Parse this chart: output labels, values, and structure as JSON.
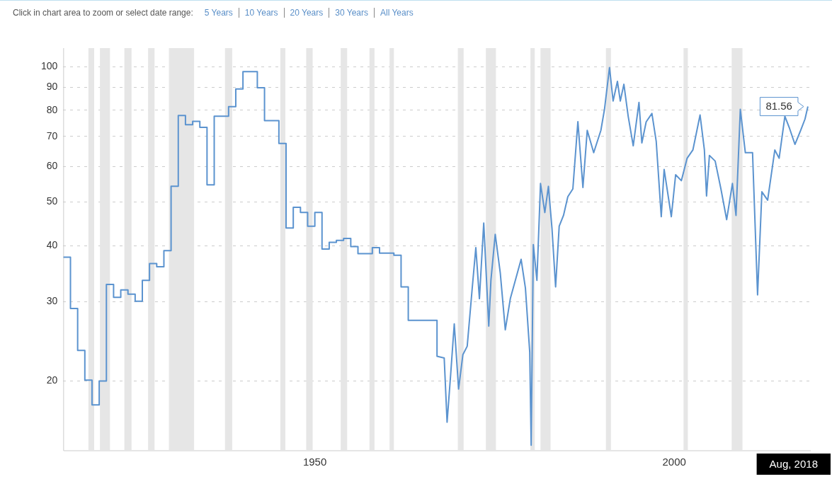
{
  "chart_data": {
    "type": "line",
    "annotations": [
      "Click in chart area to zoom or select date range:",
      "5 Years",
      "10 Years",
      "20 Years",
      "30 Years",
      "All Years",
      {
        "text": "81.56",
        "x": 2018.6,
        "y": 81.56
      },
      "Aug, 2018"
    ],
    "xlim": [
      1915,
      2019
    ],
    "xticks": [
      1950,
      2000
    ],
    "ylim": [
      14,
      110
    ],
    "yticks": [
      20,
      30,
      40,
      50,
      60,
      70,
      80,
      90,
      100
    ],
    "log": "y",
    "grid": "y",
    "legend": false,
    "marker": "none",
    "line_style": "solid",
    "bands": [
      {
        "axis": "x",
        "from": 1918.5,
        "to": 1919.3,
        "color": "#e6e6e6"
      },
      {
        "axis": "x",
        "from": 1920.1,
        "to": 1921.5,
        "color": "#e6e6e6"
      },
      {
        "axis": "x",
        "from": 1923.5,
        "to": 1924.5,
        "color": "#e6e6e6"
      },
      {
        "axis": "x",
        "from": 1926.8,
        "to": 1927.7,
        "color": "#e6e6e6"
      },
      {
        "axis": "x",
        "from": 1929.7,
        "to": 1933.2,
        "color": "#e6e6e6"
      },
      {
        "axis": "x",
        "from": 1937.5,
        "to": 1938.5,
        "color": "#e6e6e6"
      },
      {
        "axis": "x",
        "from": 1945.2,
        "to": 1945.9,
        "color": "#e6e6e6"
      },
      {
        "axis": "x",
        "from": 1948.8,
        "to": 1949.7,
        "color": "#e6e6e6"
      },
      {
        "axis": "x",
        "from": 1953.6,
        "to": 1954.5,
        "color": "#e6e6e6"
      },
      {
        "axis": "x",
        "from": 1957.6,
        "to": 1958.3,
        "color": "#e6e6e6"
      },
      {
        "axis": "x",
        "from": 1960.4,
        "to": 1961.0,
        "color": "#e6e6e6"
      },
      {
        "axis": "x",
        "from": 1969.9,
        "to": 1970.7,
        "color": "#e6e6e6"
      },
      {
        "axis": "x",
        "from": 1973.8,
        "to": 1975.2,
        "color": "#e6e6e6"
      },
      {
        "axis": "x",
        "from": 1980.0,
        "to": 1980.6,
        "color": "#e6e6e6"
      },
      {
        "axis": "x",
        "from": 1981.4,
        "to": 1982.8,
        "color": "#e6e6e6"
      },
      {
        "axis": "x",
        "from": 1990.5,
        "to": 1991.2,
        "color": "#e6e6e6"
      },
      {
        "axis": "x",
        "from": 2001.3,
        "to": 2001.9,
        "color": "#e6e6e6"
      },
      {
        "axis": "x",
        "from": 2008.0,
        "to": 2009.5,
        "color": "#e6e6e6"
      }
    ],
    "series": [
      {
        "color": "#5b93cf",
        "x": [
          1915,
          1916,
          1916,
          1917,
          1917,
          1918,
          1918,
          1919,
          1919,
          1920,
          1920,
          1921,
          1921,
          1922,
          1922,
          1923,
          1923,
          1924,
          1924,
          1925,
          1925,
          1926,
          1926,
          1927,
          1927,
          1928,
          1928,
          1929,
          1929,
          1930,
          1930,
          1931,
          1931,
          1932,
          1932,
          1933,
          1933,
          1934,
          1934,
          1935,
          1935,
          1936,
          1936,
          1938,
          1938,
          1939,
          1939,
          1940,
          1940,
          1942,
          1942,
          1943,
          1943,
          1945,
          1945,
          1946,
          1946,
          1947,
          1947,
          1948,
          1948,
          1949,
          1949,
          1950,
          1950,
          1951,
          1951,
          1952,
          1952,
          1953,
          1953,
          1954,
          1954,
          1955,
          1955,
          1956,
          1956,
          1958,
          1958,
          1959,
          1959,
          1961,
          1961,
          1962,
          1962,
          1963,
          1963,
          1967,
          1967,
          1968.0,
          1968.4,
          1968.9,
          1969.4,
          1970.0,
          1970.6,
          1971.2,
          1971.9,
          1972.4,
          1972.9,
          1973.5,
          1974.2,
          1974.5,
          1975.1,
          1975.8,
          1976.5,
          1977.2,
          1978.1,
          1978.7,
          1979.3,
          1979.9,
          1980.1,
          1980.4,
          1980.9,
          1981.4,
          1982.0,
          1982.5,
          1983.0,
          1983.5,
          1984.0,
          1984.6,
          1985.2,
          1985.9,
          1986.6,
          1987.3,
          1987.9,
          1988.8,
          1989.8,
          1990.3,
          1991.0,
          1991.5,
          1992.1,
          1992.5,
          1993.0,
          1993.6,
          1994.3,
          1995.1,
          1995.5,
          1996.1,
          1996.9,
          1997.5,
          1998.2,
          1998.6,
          1999.6,
          2000.2,
          2001.0,
          2001.8,
          2002.6,
          2003.6,
          2004.2,
          2004.5,
          2004.9,
          2005.7,
          2006.5,
          2007.3,
          2008.1,
          2008.6,
          2009.2,
          2009.9,
          2010.9,
          2011.6,
          2012.2,
          2013.0,
          2014.0,
          2014.6,
          2015.4,
          2016.0,
          2016.8,
          2017.6,
          2018.2,
          2018.6
        ],
        "values": [
          37.7,
          37.7,
          29.0,
          29.0,
          23.4,
          23.4,
          20.1,
          20.1,
          17.7,
          17.7,
          20.0,
          20.0,
          32.8,
          32.8,
          30.7,
          30.7,
          31.9,
          31.9,
          31.2,
          31.2,
          30.1,
          30.1,
          33.5,
          33.5,
          36.5,
          36.5,
          35.9,
          35.9,
          39.0,
          39.0,
          54.2,
          54.2,
          77.9,
          77.9,
          74.3,
          74.3,
          75.6,
          75.6,
          73.3,
          73.3,
          54.6,
          54.6,
          77.6,
          77.6,
          81.5,
          81.5,
          89.2,
          89.2,
          97.5,
          97.5,
          89.8,
          89.8,
          75.9,
          75.9,
          67.5,
          67.5,
          43.8,
          43.8,
          48.7,
          48.7,
          47.4,
          47.4,
          44.2,
          44.2,
          47.4,
          47.4,
          39.3,
          39.3,
          40.7,
          40.7,
          41.1,
          41.1,
          41.5,
          41.5,
          39.8,
          39.8,
          38.4,
          38.4,
          39.6,
          39.6,
          38.5,
          38.5,
          38.1,
          38.1,
          32.4,
          32.4,
          27.3,
          27.3,
          22.7,
          22.5,
          16.2,
          20.7,
          26.8,
          19.2,
          22.9,
          23.9,
          32.2,
          39.6,
          30.5,
          44.9,
          26.5,
          33.5,
          42.4,
          34.8,
          26.0,
          30.5,
          34.4,
          37.3,
          32.2,
          23.2,
          14.4,
          40.2,
          33.5,
          55.0,
          47.4,
          54.2,
          43.6,
          32.4,
          44.2,
          46.7,
          51.4,
          53.5,
          75.5,
          53.9,
          72.2,
          64.4,
          72.2,
          80.4,
          99.6,
          83.9,
          92.8,
          83.9,
          91.4,
          77.6,
          66.7,
          83.3,
          67.7,
          75.4,
          78.7,
          68.2,
          46.4,
          59.1,
          46.4,
          57.5,
          55.8,
          62.6,
          65.3,
          78.1,
          65.3,
          51.6,
          63.5,
          61.7,
          53.5,
          45.7,
          55.0,
          46.7,
          80.4,
          64.4,
          64.4,
          31.1,
          52.7,
          50.5,
          65.3,
          62.6,
          77.6,
          73.3,
          67.2,
          72.2,
          76.5,
          81.56
        ]
      }
    ]
  }
}
